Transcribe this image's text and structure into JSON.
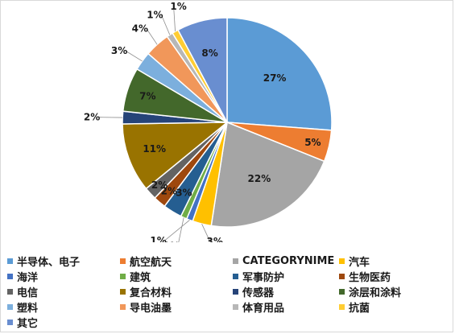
{
  "chart_data": {
    "type": "pie",
    "title": "",
    "legend_position": "bottom",
    "slices": [
      {
        "name": "半导体、电子",
        "value": 27,
        "label": "27%",
        "color": "#5b9bd5"
      },
      {
        "name": "航空航天",
        "value": 5,
        "label": "5%",
        "color": "#ed7d31"
      },
      {
        "name": "CATEGORYNIME",
        "value": 22,
        "label": "22%",
        "color": "#a5a5a5"
      },
      {
        "name": "汽车",
        "value": 3,
        "label": "3%",
        "color": "#ffc000"
      },
      {
        "name": "海洋",
        "value": 1,
        "label": "1%",
        "color": "#4472c4"
      },
      {
        "name": "建筑",
        "value": 1,
        "label": "1%",
        "color": "#70ad47"
      },
      {
        "name": "军事防护",
        "value": 3,
        "label": "3%",
        "color": "#255e91"
      },
      {
        "name": "生物医药",
        "value": 2,
        "label": "2%",
        "color": "#9e480e"
      },
      {
        "name": "电信",
        "value": 2,
        "label": "2%",
        "color": "#636363"
      },
      {
        "name": "复合材料",
        "value": 11,
        "label": "11%",
        "color": "#997300"
      },
      {
        "name": "传感器",
        "value": 2,
        "label": "2%",
        "color": "#264478"
      },
      {
        "name": "涂层和涂料",
        "value": 7,
        "label": "7%",
        "color": "#43682b"
      },
      {
        "name": "塑料",
        "value": 3,
        "label": "3%",
        "color": "#7cafdd"
      },
      {
        "name": "导电油墨",
        "value": 4,
        "label": "4%",
        "color": "#f1975a"
      },
      {
        "name": "体育用品",
        "value": 1,
        "label": "1%",
        "color": "#b7b7b7"
      },
      {
        "name": "抗菌",
        "value": 1,
        "label": "1%",
        "color": "#ffcd33"
      },
      {
        "name": "其它",
        "value": 8,
        "label": "8%",
        "color": "#698ed0"
      }
    ]
  }
}
